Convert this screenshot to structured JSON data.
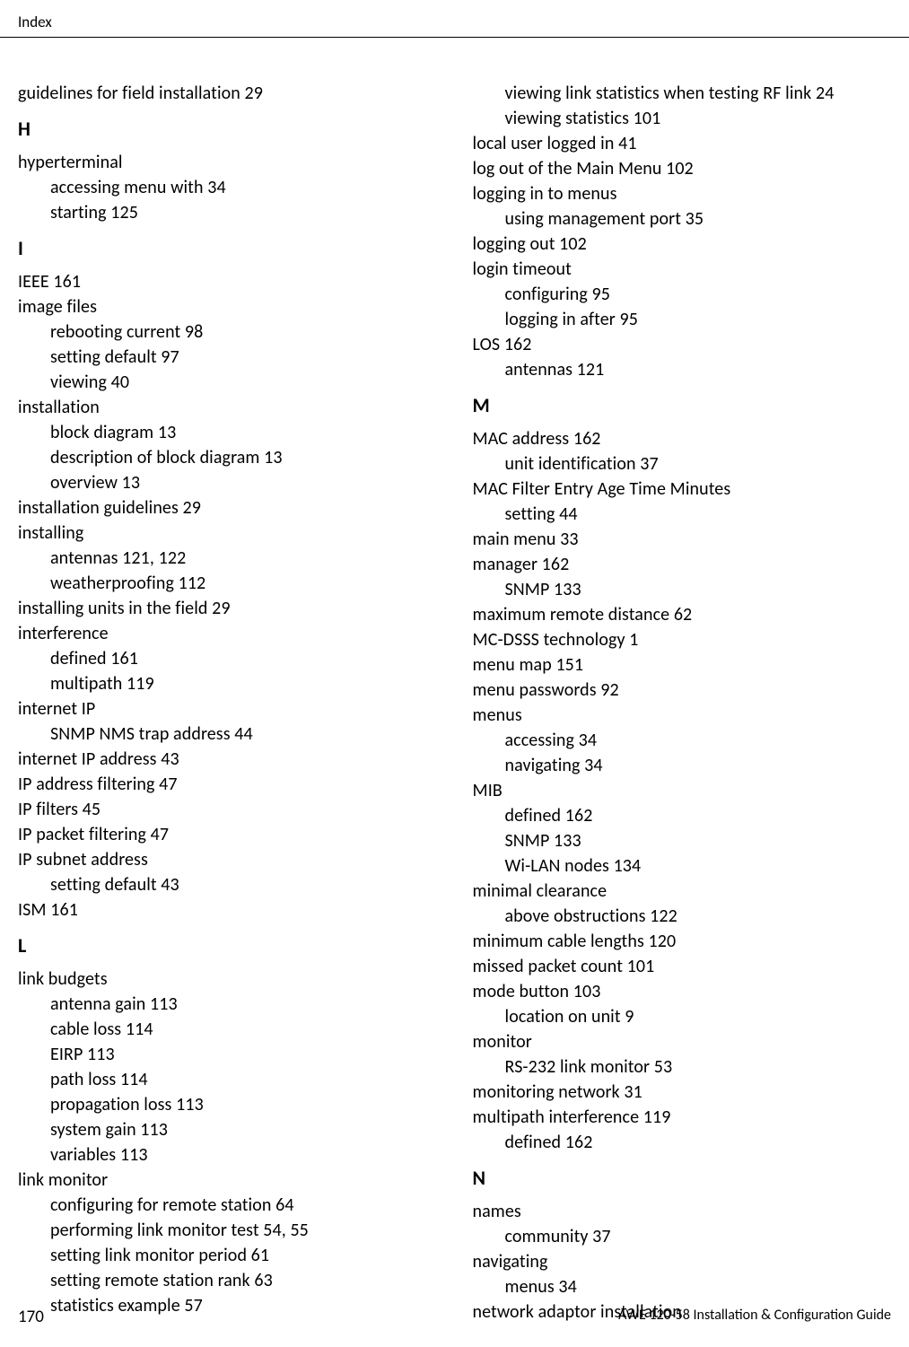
{
  "header": "Index",
  "footer": {
    "page": "170",
    "doc": "AWE 120-58   Installation & Configuration Guide"
  },
  "left": [
    {
      "t": "guidelines for field installation 29"
    },
    {
      "letter": "H"
    },
    {
      "t": "hyperterminal"
    },
    {
      "t": "accessing menu with 34",
      "sub": true
    },
    {
      "t": "starting 125",
      "sub": true
    },
    {
      "letter": "I"
    },
    {
      "t": "IEEE 161"
    },
    {
      "t": "image files"
    },
    {
      "t": "rebooting current 98",
      "sub": true
    },
    {
      "t": "setting default 97",
      "sub": true
    },
    {
      "t": "viewing 40",
      "sub": true
    },
    {
      "t": "installation"
    },
    {
      "t": "block diagram 13",
      "sub": true
    },
    {
      "t": "description of block diagram 13",
      "sub": true
    },
    {
      "t": "overview 13",
      "sub": true
    },
    {
      "t": "installation guidelines 29"
    },
    {
      "t": "installing"
    },
    {
      "t": "antennas 121, 122",
      "sub": true
    },
    {
      "t": "weatherproofing 112",
      "sub": true
    },
    {
      "t": "installing units in the field 29"
    },
    {
      "t": "interference"
    },
    {
      "t": "defined 161",
      "sub": true
    },
    {
      "t": "multipath 119",
      "sub": true
    },
    {
      "t": "internet IP"
    },
    {
      "t": "SNMP NMS trap address 44",
      "sub": true
    },
    {
      "t": "internet IP address 43"
    },
    {
      "t": "IP address filtering 47"
    },
    {
      "t": "IP filters 45"
    },
    {
      "t": "IP packet filtering 47"
    },
    {
      "t": "IP subnet address"
    },
    {
      "t": "setting default 43",
      "sub": true
    },
    {
      "t": "ISM 161"
    },
    {
      "letter": "L"
    },
    {
      "t": "link budgets"
    },
    {
      "t": "antenna gain 113",
      "sub": true
    },
    {
      "t": "cable loss 114",
      "sub": true
    },
    {
      "t": "EIRP 113",
      "sub": true
    },
    {
      "t": "path loss 114",
      "sub": true
    },
    {
      "t": "propagation loss 113",
      "sub": true
    },
    {
      "t": "system gain 113",
      "sub": true
    },
    {
      "t": "variables 113",
      "sub": true
    },
    {
      "t": "link monitor"
    },
    {
      "t": "configuring for remote station 64",
      "sub": true
    },
    {
      "t": "performing link monitor test 54, 55",
      "sub": true
    },
    {
      "t": "setting link monitor period 61",
      "sub": true
    },
    {
      "t": "setting remote station rank 63",
      "sub": true
    },
    {
      "t": "statistics example 57",
      "sub": true
    }
  ],
  "right": [
    {
      "t": "viewing link statistics when testing RF link 24",
      "sub": true
    },
    {
      "t": "viewing statistics 101",
      "sub": true
    },
    {
      "t": "local user logged in 41"
    },
    {
      "t": "log out of the Main Menu 102"
    },
    {
      "t": "logging in to menus"
    },
    {
      "t": "using management port 35",
      "sub": true
    },
    {
      "t": "logging out 102"
    },
    {
      "t": "login timeout"
    },
    {
      "t": "configuring 95",
      "sub": true
    },
    {
      "t": "logging in after 95",
      "sub": true
    },
    {
      "t": "LOS 162"
    },
    {
      "t": "antennas 121",
      "sub": true
    },
    {
      "letter": "M"
    },
    {
      "t": "MAC address 162"
    },
    {
      "t": "unit identification 37",
      "sub": true
    },
    {
      "t": "MAC Filter Entry Age Time Minutes"
    },
    {
      "t": "setting 44",
      "sub": true
    },
    {
      "t": "main menu 33"
    },
    {
      "t": "manager 162"
    },
    {
      "t": "SNMP 133",
      "sub": true
    },
    {
      "t": "maximum remote distance 62"
    },
    {
      "t": "MC-DSSS technology 1"
    },
    {
      "t": "menu map 151"
    },
    {
      "t": "menu passwords 92"
    },
    {
      "t": "menus"
    },
    {
      "t": "accessing 34",
      "sub": true
    },
    {
      "t": "navigating 34",
      "sub": true
    },
    {
      "t": "MIB"
    },
    {
      "t": "defined 162",
      "sub": true
    },
    {
      "t": "SNMP 133",
      "sub": true
    },
    {
      "t": "Wi-LAN nodes 134",
      "sub": true
    },
    {
      "t": "minimal clearance"
    },
    {
      "t": "above obstructions 122",
      "sub": true
    },
    {
      "t": "minimum cable lengths 120"
    },
    {
      "t": "missed packet count 101"
    },
    {
      "t": "mode button 103"
    },
    {
      "t": "location on unit 9",
      "sub": true
    },
    {
      "t": "monitor"
    },
    {
      "t": "RS-232 link monitor 53",
      "sub": true
    },
    {
      "t": "monitoring network 31"
    },
    {
      "t": "multipath interference 119"
    },
    {
      "t": "defined 162",
      "sub": true
    },
    {
      "letter": "N"
    },
    {
      "t": "names"
    },
    {
      "t": "community 37",
      "sub": true
    },
    {
      "t": "navigating"
    },
    {
      "t": "menus 34",
      "sub": true
    },
    {
      "t": "network adaptor installation"
    }
  ]
}
